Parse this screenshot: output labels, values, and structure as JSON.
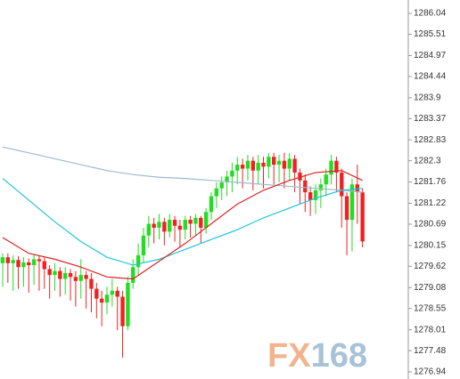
{
  "chart_data": {
    "type": "candlestick",
    "open": [
      1279.7,
      1279.85,
      1279.7,
      1279.78,
      1279.6,
      1279.72,
      1279.65,
      1279.8,
      1279.75,
      1279.55,
      1279.4,
      1279.5,
      1279.3,
      1279.45,
      1279.35,
      1279.25,
      1279.4,
      1279.3,
      1279.05,
      1278.8,
      1278.7,
      1278.9,
      1279.0,
      1278.85,
      1278.1,
      1279.2,
      1279.6,
      1279.9,
      1280.4,
      1280.7,
      1280.6,
      1280.75,
      1280.5,
      1280.8,
      1280.65,
      1280.55,
      1280.8,
      1280.7,
      1280.85,
      1280.6,
      1281.0,
      1281.4,
      1281.6,
      1281.75,
      1281.9,
      1282.05,
      1282.2,
      1282.1,
      1282.3,
      1282.05,
      1282.25,
      1282.15,
      1282.4,
      1282.2,
      1282.3,
      1282.1,
      1282.35,
      1282.0,
      1281.8,
      1281.5,
      1281.3,
      1281.55,
      1281.7,
      1281.95,
      1282.3,
      1282.0,
      1281.4,
      1280.8,
      1281.7,
      1281.5
    ],
    "high": [
      1279.95,
      1279.95,
      1279.9,
      1279.88,
      1279.85,
      1279.82,
      1279.92,
      1279.9,
      1279.85,
      1279.65,
      1279.7,
      1279.6,
      1279.6,
      1279.55,
      1279.5,
      1279.8,
      1279.5,
      1279.45,
      1279.2,
      1279.0,
      1279.1,
      1279.3,
      1279.1,
      1279.0,
      1279.35,
      1279.8,
      1280.2,
      1280.6,
      1280.9,
      1280.85,
      1280.95,
      1280.85,
      1280.95,
      1280.9,
      1280.8,
      1280.9,
      1280.9,
      1280.95,
      1280.9,
      1281.1,
      1281.5,
      1281.75,
      1281.9,
      1282.05,
      1282.25,
      1282.4,
      1282.35,
      1282.45,
      1282.4,
      1282.45,
      1282.4,
      1282.5,
      1282.5,
      1282.45,
      1282.5,
      1282.5,
      1282.45,
      1282.1,
      1281.95,
      1281.65,
      1281.7,
      1281.85,
      1282.1,
      1282.45,
      1282.4,
      1282.1,
      1281.5,
      1281.85,
      1282.2,
      1281.6
    ],
    "low": [
      1279.1,
      1279.2,
      1279.0,
      1279.05,
      1279.1,
      1278.95,
      1279.15,
      1279.0,
      1279.05,
      1278.8,
      1279.0,
      1278.85,
      1278.9,
      1278.75,
      1278.6,
      1278.8,
      1278.55,
      1278.45,
      1278.3,
      1278.1,
      1278.4,
      1278.6,
      1278.0,
      1277.3,
      1278.0,
      1279.05,
      1279.4,
      1279.7,
      1280.1,
      1280.2,
      1280.3,
      1280.15,
      1280.35,
      1280.25,
      1280.1,
      1280.3,
      1280.35,
      1280.4,
      1280.2,
      1280.45,
      1280.8,
      1281.1,
      1281.3,
      1281.4,
      1281.5,
      1281.7,
      1281.6,
      1281.8,
      1281.55,
      1281.7,
      1281.6,
      1281.85,
      1281.7,
      1281.75,
      1281.6,
      1281.8,
      1281.5,
      1281.2,
      1281.0,
      1280.9,
      1280.95,
      1281.1,
      1281.4,
      1281.7,
      1281.5,
      1280.6,
      1279.9,
      1280.0,
      1280.7,
      1280.1
    ],
    "close": [
      1279.85,
      1279.7,
      1279.78,
      1279.6,
      1279.72,
      1279.65,
      1279.8,
      1279.75,
      1279.55,
      1279.4,
      1279.5,
      1279.3,
      1279.45,
      1279.35,
      1279.25,
      1279.4,
      1279.3,
      1279.05,
      1278.8,
      1278.7,
      1278.9,
      1279.0,
      1278.85,
      1278.1,
      1279.2,
      1279.6,
      1279.9,
      1280.4,
      1280.7,
      1280.6,
      1280.75,
      1280.5,
      1280.8,
      1280.65,
      1280.55,
      1280.8,
      1280.7,
      1280.85,
      1280.6,
      1281.0,
      1281.4,
      1281.6,
      1281.75,
      1281.9,
      1282.05,
      1282.2,
      1282.1,
      1282.3,
      1282.05,
      1282.25,
      1282.15,
      1282.4,
      1282.2,
      1282.3,
      1282.1,
      1282.35,
      1282.0,
      1281.8,
      1281.5,
      1281.3,
      1281.55,
      1281.7,
      1281.95,
      1282.3,
      1282.0,
      1281.4,
      1280.8,
      1281.7,
      1281.5,
      1280.25
    ],
    "up_color": "#22dd22",
    "down_color": "#ee2222",
    "ma_x": [
      0,
      5,
      10,
      15,
      20,
      25,
      30,
      35,
      40,
      45,
      50,
      55,
      60,
      65,
      69
    ],
    "series": [
      {
        "color": "#9fb9d0",
        "values": [
          1282.65,
          1282.5,
          1282.35,
          1282.2,
          1282.05,
          1281.95,
          1281.88,
          1281.85,
          1281.8,
          1281.75,
          1281.7,
          1281.65,
          1281.6,
          1281.55,
          1281.5
        ]
      },
      {
        "color": "#22c4d8",
        "values": [
          1281.85,
          1281.3,
          1280.75,
          1280.25,
          1279.85,
          1279.65,
          1279.8,
          1280.05,
          1280.3,
          1280.55,
          1280.85,
          1281.1,
          1281.35,
          1281.55,
          1281.6
        ]
      },
      {
        "color": "#dd2222",
        "values": [
          1280.35,
          1279.95,
          1279.8,
          1279.6,
          1279.35,
          1279.3,
          1279.75,
          1280.2,
          1280.7,
          1281.2,
          1281.55,
          1281.8,
          1282.0,
          1282.05,
          1281.8
        ]
      }
    ],
    "ylim": [
      1276.76,
      1286.38
    ],
    "yticks": [
      1286.04,
      1285.51,
      1284.97,
      1284.44,
      1283.9,
      1283.37,
      1282.83,
      1282.3,
      1281.76,
      1281.22,
      1280.69,
      1280.15,
      1279.62,
      1279.08,
      1278.55,
      1278.01,
      1277.48,
      1276.94
    ],
    "watermark": [
      "FX",
      "168"
    ]
  }
}
